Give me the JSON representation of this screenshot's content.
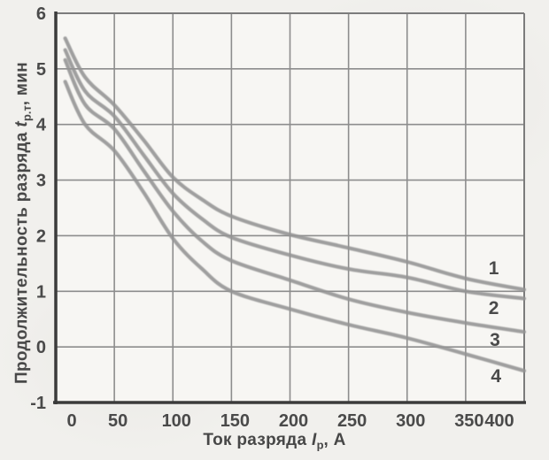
{
  "figure": {
    "kind": "scanned grayscale discharge-curves plot, no title",
    "colors": {
      "background": "#f1f0ed",
      "plot_background": "#f7f6f3",
      "grid": "#8d8d8d",
      "border": "#7c7c7c",
      "axis": "#3b3b3b",
      "curve": "#949494",
      "text": "#4a4a4a"
    }
  },
  "axes": {
    "y_label": {
      "prefix": "Продолжительность разряда ",
      "symbol": "t",
      "sub": "р.т",
      "suffix": ", мин"
    },
    "x_label": {
      "prefix": "Ток разряда ",
      "symbol": "I",
      "sub": "р",
      "suffix": ", А"
    }
  },
  "chart_data": {
    "type": "line",
    "title": "",
    "xlabel": "Ток разряда Iр, А",
    "ylabel": "Продолжительность разряда tр.т, мин",
    "xlim": [
      0,
      400
    ],
    "ylim": [
      -1,
      6
    ],
    "x_ticks": [
      0,
      50,
      100,
      150,
      200,
      250,
      300,
      350,
      400
    ],
    "y_ticks": [
      -1,
      0,
      1,
      2,
      3,
      4,
      5,
      6
    ],
    "grid": true,
    "legend_position": "curve numbers labeled inline near right edge",
    "x": [
      8,
      25,
      50,
      75,
      100,
      125,
      150,
      200,
      250,
      300,
      350,
      400
    ],
    "series": [
      {
        "name": "1",
        "values": [
          5.55,
          4.85,
          4.35,
          3.72,
          3.05,
          2.65,
          2.35,
          2.02,
          1.78,
          1.53,
          1.23,
          1.03
        ],
        "label_pos": {
          "x": 374,
          "y": 1.42
        }
      },
      {
        "name": "2",
        "values": [
          5.34,
          4.6,
          4.15,
          3.45,
          2.76,
          2.3,
          1.97,
          1.65,
          1.4,
          1.25,
          1.0,
          0.87
        ],
        "label_pos": {
          "x": 374,
          "y": 0.7
        }
      },
      {
        "name": "3",
        "values": [
          5.16,
          4.36,
          3.92,
          3.17,
          2.44,
          1.9,
          1.55,
          1.2,
          0.86,
          0.62,
          0.43,
          0.27
        ],
        "label_pos": {
          "x": 375,
          "y": 0.13
        }
      },
      {
        "name": "4",
        "values": [
          4.77,
          4.0,
          3.53,
          2.78,
          1.95,
          1.4,
          1.0,
          0.68,
          0.4,
          0.16,
          -0.13,
          -0.43
        ],
        "label_pos": {
          "x": 376,
          "y": -0.52
        }
      }
    ]
  }
}
